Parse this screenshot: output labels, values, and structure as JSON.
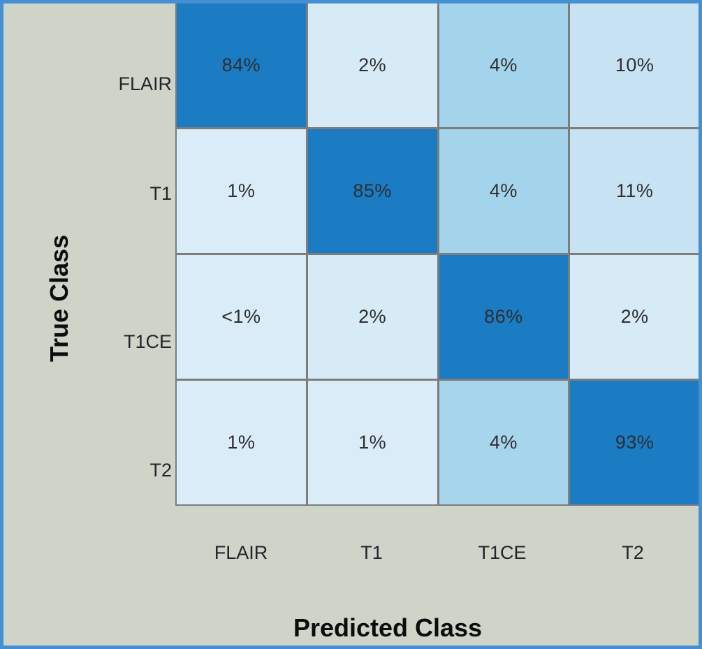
{
  "figure": {
    "y_axis_title": "True Class",
    "x_axis_title": "Predicted Class"
  },
  "chart_data": {
    "type": "heatmap",
    "subtype": "confusion-matrix",
    "title": "",
    "row_axis_label": "True Class",
    "col_axis_label": "Predicted Class",
    "row_labels": [
      "FLAIR",
      "T1",
      "T1CE",
      "T2"
    ],
    "col_labels": [
      "FLAIR",
      "T1",
      "T1CE",
      "T2"
    ],
    "cell_display": [
      [
        "84%",
        "2%",
        "4%",
        "10%"
      ],
      [
        "1%",
        "85%",
        "4%",
        "11%"
      ],
      [
        "<1%",
        "2%",
        "86%",
        "2%"
      ],
      [
        "1%",
        "1%",
        "4%",
        "93%"
      ]
    ],
    "cell_values_percent": [
      [
        84,
        2,
        4,
        10
      ],
      [
        1,
        85,
        4,
        11
      ],
      [
        0.5,
        2,
        86,
        2
      ],
      [
        1,
        1,
        4,
        93
      ]
    ],
    "cell_colors": [
      [
        "#1b7cc4",
        "#d7ebf7",
        "#a4d4eb",
        "#c7e3f3"
      ],
      [
        "#d9ecf8",
        "#1b7cc4",
        "#a4d4eb",
        "#c7e3f3"
      ],
      [
        "#d9ecf8",
        "#d7ebf7",
        "#1b7cc4",
        "#d7ebf7"
      ],
      [
        "#d9ecf8",
        "#d9ecf8",
        "#a6d5ec",
        "#1b7cc4"
      ]
    ],
    "colors": {
      "diagonal_cell": "#1b7cc4",
      "medium_cell": "#a4d4eb",
      "light_cell": "#d8ebf7",
      "background": "#cfd4c9",
      "frame_border": "#4590d2",
      "grid_line": "#7d7d7d",
      "cell_text": "#2e2e30"
    },
    "legend": "none",
    "grid": true
  }
}
